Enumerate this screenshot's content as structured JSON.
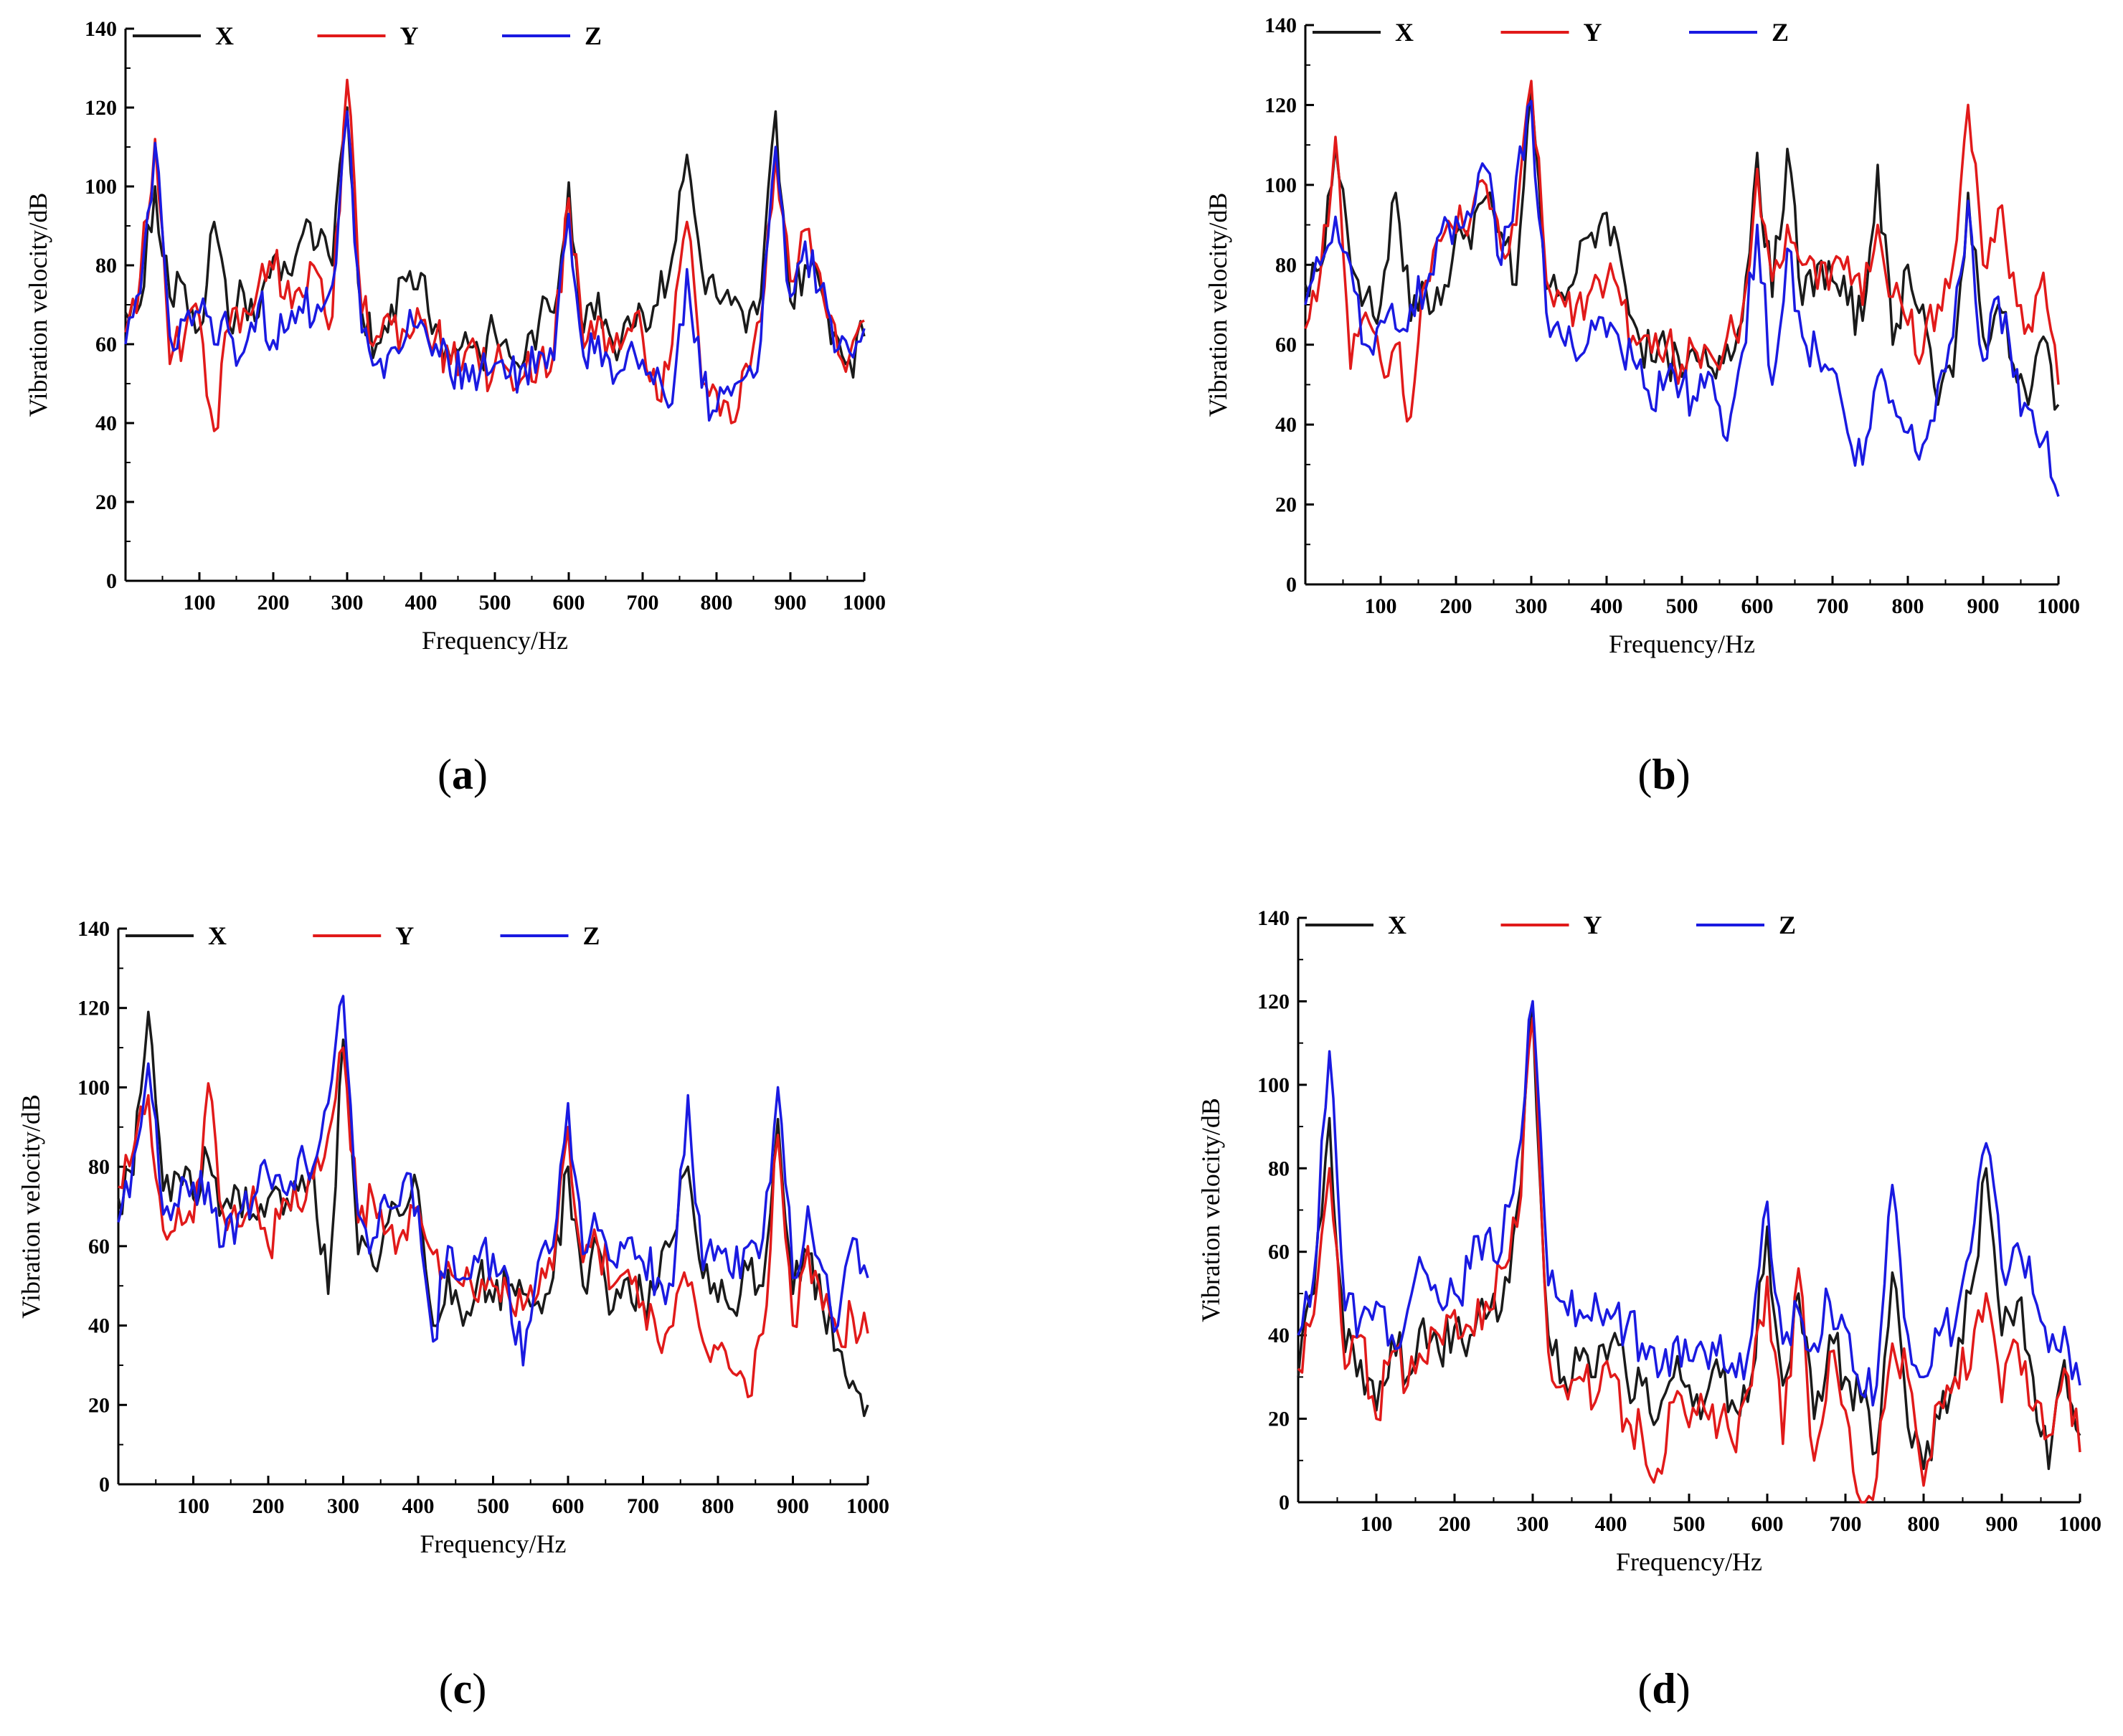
{
  "chart_data": [
    {
      "type": "line",
      "panel": "a",
      "caption": "(a)",
      "caption_open": "(",
      "caption_letter": "a",
      "caption_close": ")",
      "xlabel": "Frequency/Hz",
      "ylabel": "Vibration velocity/dB",
      "xlim": [
        0,
        1000
      ],
      "ylim": [
        0,
        140
      ],
      "xticks": [
        100,
        200,
        300,
        400,
        500,
        600,
        700,
        800,
        900,
        1000
      ],
      "yticks": [
        0,
        20,
        40,
        60,
        80,
        100,
        120,
        140
      ],
      "legend": [
        "X",
        "Y",
        "Z"
      ],
      "legend_position": "top",
      "x": [
        0,
        20,
        40,
        60,
        80,
        100,
        120,
        140,
        160,
        180,
        200,
        220,
        240,
        260,
        280,
        300,
        320,
        340,
        360,
        380,
        400,
        420,
        440,
        460,
        480,
        500,
        520,
        540,
        560,
        580,
        600,
        620,
        640,
        660,
        680,
        700,
        720,
        740,
        760,
        780,
        800,
        820,
        840,
        860,
        880,
        900,
        920,
        940,
        960,
        980,
        1000
      ],
      "series": [
        {
          "name": "X",
          "color": "#1a1a1a",
          "values": [
            68,
            70,
            100,
            72,
            75,
            64,
            91,
            65,
            73,
            67,
            82,
            78,
            88,
            85,
            80,
            120,
            68,
            60,
            70,
            76,
            78,
            65,
            56,
            63,
            57,
            63,
            57,
            56,
            66,
            68,
            101,
            63,
            73,
            60,
            67,
            68,
            70,
            82,
            108,
            79,
            72,
            70,
            63,
            72,
            119,
            71,
            80,
            75,
            63,
            56,
            62
          ]
        },
        {
          "name": "Y",
          "color": "#e11a1a",
          "values": [
            63,
            77,
            112,
            55,
            62,
            67,
            38,
            64,
            69,
            75,
            79,
            76,
            72,
            78,
            67,
            127,
            68,
            62,
            65,
            63,
            66,
            62,
            55,
            58,
            53,
            55,
            53,
            52,
            56,
            58,
            97,
            59,
            67,
            58,
            64,
            62,
            46,
            60,
            91,
            50,
            48,
            40,
            55,
            66,
            108,
            76,
            89,
            78,
            65,
            57,
            66
          ]
        },
        {
          "name": "Z",
          "color": "#1a1ae1",
          "values": [
            60,
            73,
            111,
            62,
            66,
            68,
            60,
            63,
            58,
            70,
            61,
            64,
            68,
            70,
            75,
            119,
            63,
            55,
            59,
            62,
            66,
            60,
            52,
            55,
            53,
            55,
            52,
            55,
            58,
            56,
            93,
            57,
            62,
            50,
            58,
            56,
            54,
            45,
            79,
            49,
            43,
            47,
            52,
            61,
            110,
            72,
            86,
            74,
            58,
            58,
            64
          ]
        }
      ]
    },
    {
      "type": "line",
      "panel": "b",
      "caption": "(b)",
      "caption_open": "(",
      "caption_letter": "b",
      "caption_close": ")",
      "xlabel": "Frequency/Hz",
      "ylabel": "Vibration velocity/dB",
      "xlim": [
        0,
        1000
      ],
      "ylim": [
        0,
        140
      ],
      "xticks": [
        100,
        200,
        300,
        400,
        500,
        600,
        700,
        800,
        900,
        1000
      ],
      "yticks": [
        0,
        20,
        40,
        60,
        80,
        100,
        120,
        140
      ],
      "legend": [
        "X",
        "Y",
        "Z"
      ],
      "legend_position": "top",
      "x": [
        0,
        20,
        40,
        60,
        80,
        100,
        120,
        140,
        160,
        180,
        200,
        220,
        240,
        260,
        280,
        300,
        320,
        340,
        360,
        380,
        400,
        420,
        440,
        460,
        480,
        500,
        520,
        540,
        560,
        580,
        600,
        620,
        640,
        660,
        680,
        700,
        720,
        740,
        760,
        780,
        800,
        820,
        840,
        860,
        880,
        900,
        920,
        940,
        960,
        980,
        1000
      ],
      "series": [
        {
          "name": "X",
          "color": "#1a1a1a",
          "values": [
            75,
            79,
            110,
            80,
            72,
            70,
            98,
            66,
            74,
            70,
            88,
            84,
            97,
            88,
            75,
            124,
            74,
            73,
            78,
            88,
            93,
            80,
            64,
            56,
            58,
            52,
            56,
            54,
            60,
            66,
            108,
            72,
            109,
            70,
            80,
            76,
            70,
            66,
            105,
            60,
            80,
            70,
            45,
            52,
            98,
            62,
            70,
            55,
            45,
            62,
            45
          ]
        },
        {
          "name": "Y",
          "color": "#e11a1a",
          "values": [
            64,
            78,
            112,
            54,
            68,
            56,
            60,
            42,
            76,
            86,
            88,
            92,
            100,
            84,
            90,
            126,
            76,
            72,
            70,
            74,
            76,
            70,
            60,
            58,
            60,
            55,
            58,
            57,
            62,
            68,
            104,
            76,
            90,
            80,
            74,
            80,
            82,
            70,
            90,
            72,
            65,
            58,
            70,
            80,
            120,
            80,
            94,
            78,
            65,
            78,
            50
          ]
        },
        {
          "name": "Z",
          "color": "#1a1ae1",
          "values": [
            70,
            80,
            92,
            80,
            60,
            66,
            64,
            70,
            74,
            88,
            92,
            92,
            104,
            80,
            102,
            121,
            68,
            62,
            56,
            66,
            62,
            58,
            54,
            44,
            52,
            50,
            46,
            52,
            36,
            58,
            90,
            50,
            84,
            62,
            58,
            54,
            38,
            30,
            52,
            46,
            38,
            35,
            50,
            62,
            96,
            56,
            72,
            52,
            44,
            36,
            22
          ]
        }
      ]
    },
    {
      "type": "line",
      "panel": "c",
      "caption": "(c)",
      "caption_open": "(",
      "caption_letter": "c",
      "caption_close": ")",
      "xlabel": "Frequency/Hz",
      "ylabel": "Vibration velocity/dB",
      "xlim": [
        0,
        1000
      ],
      "ylim": [
        0,
        140
      ],
      "xticks": [
        100,
        200,
        300,
        400,
        500,
        600,
        700,
        800,
        900,
        1000
      ],
      "yticks": [
        0,
        20,
        40,
        60,
        80,
        100,
        120,
        140
      ],
      "legend": [
        "X",
        "Y",
        "Z"
      ],
      "legend_position": "top",
      "x": [
        0,
        20,
        40,
        60,
        80,
        100,
        120,
        140,
        160,
        180,
        200,
        220,
        240,
        260,
        280,
        300,
        320,
        340,
        360,
        380,
        400,
        420,
        440,
        460,
        480,
        500,
        520,
        540,
        560,
        580,
        600,
        620,
        640,
        660,
        680,
        700,
        720,
        740,
        760,
        780,
        800,
        820,
        840,
        860,
        880,
        900,
        920,
        940,
        960,
        980,
        1000
      ],
      "series": [
        {
          "name": "X",
          "color": "#1a1a1a",
          "values": [
            72,
            78,
            119,
            74,
            78,
            72,
            82,
            70,
            74,
            68,
            72,
            68,
            74,
            80,
            48,
            112,
            58,
            55,
            66,
            68,
            74,
            40,
            54,
            40,
            52,
            46,
            50,
            48,
            46,
            52,
            80,
            50,
            60,
            44,
            52,
            46,
            50,
            62,
            80,
            52,
            46,
            44,
            54,
            50,
            92,
            48,
            58,
            44,
            34,
            26,
            20
          ]
        },
        {
          "name": "Y",
          "color": "#e11a1a",
          "values": [
            75,
            84,
            98,
            64,
            70,
            66,
            101,
            68,
            65,
            75,
            60,
            72,
            70,
            77,
            88,
            110,
            66,
            72,
            64,
            64,
            70,
            58,
            56,
            50,
            46,
            50,
            48,
            44,
            48,
            54,
            90,
            56,
            60,
            50,
            54,
            46,
            36,
            40,
            50,
            36,
            34,
            28,
            22,
            38,
            88,
            40,
            60,
            44,
            38,
            42,
            38
          ]
        },
        {
          "name": "Z",
          "color": "#1a1ae1",
          "values": [
            66,
            82,
            106,
            68,
            70,
            76,
            76,
            60,
            68,
            72,
            78,
            74,
            82,
            80,
            96,
            123,
            68,
            62,
            70,
            76,
            70,
            36,
            60,
            52,
            56,
            58,
            52,
            30,
            56,
            60,
            96,
            58,
            64,
            56,
            62,
            56,
            52,
            50,
            98,
            54,
            60,
            52,
            60,
            62,
            100,
            52,
            70,
            54,
            40,
            62,
            52
          ]
        }
      ]
    },
    {
      "type": "line",
      "panel": "d",
      "caption": "(d)",
      "caption_open": "(",
      "caption_letter": "d",
      "caption_close": ")",
      "xlabel": "Frequency/Hz",
      "ylabel": "Vibration velocity/dB",
      "xlim": [
        0,
        1000
      ],
      "ylim": [
        0,
        140
      ],
      "xticks": [
        100,
        200,
        300,
        400,
        500,
        600,
        700,
        800,
        900,
        1000
      ],
      "yticks": [
        0,
        20,
        40,
        60,
        80,
        100,
        120,
        140
      ],
      "legend": [
        "X",
        "Y",
        "Z"
      ],
      "legend_position": "top",
      "x": [
        0,
        20,
        40,
        60,
        80,
        100,
        120,
        140,
        160,
        180,
        200,
        220,
        240,
        260,
        280,
        300,
        320,
        340,
        360,
        380,
        400,
        420,
        440,
        460,
        480,
        500,
        520,
        540,
        560,
        580,
        600,
        620,
        640,
        660,
        680,
        700,
        720,
        740,
        760,
        780,
        800,
        820,
        840,
        860,
        880,
        900,
        920,
        940,
        960,
        980,
        1000
      ],
      "series": [
        {
          "name": "X",
          "color": "#1a1a1a",
          "values": [
            30,
            50,
            92,
            36,
            34,
            22,
            40,
            30,
            44,
            36,
            42,
            40,
            44,
            46,
            70,
            118,
            40,
            30,
            34,
            30,
            38,
            30,
            28,
            20,
            30,
            28,
            24,
            30,
            22,
            30,
            66,
            28,
            50,
            20,
            40,
            30,
            24,
            12,
            55,
            18,
            8,
            20,
            30,
            50,
            80,
            40,
            48,
            30,
            8,
            34,
            16
          ]
        },
        {
          "name": "Y",
          "color": "#e11a1a",
          "values": [
            32,
            45,
            80,
            32,
            40,
            20,
            36,
            28,
            34,
            40,
            46,
            42,
            48,
            56,
            66,
            116,
            36,
            28,
            30,
            24,
            30,
            20,
            16,
            8,
            24,
            18,
            22,
            20,
            12,
            28,
            54,
            14,
            56,
            10,
            36,
            22,
            0,
            6,
            38,
            30,
            4,
            24,
            30,
            32,
            50,
            24,
            38,
            22,
            16,
            32,
            12
          ]
        },
        {
          "name": "Z",
          "color": "#1a1ae1",
          "values": [
            40,
            54,
            108,
            46,
            44,
            48,
            40,
            46,
            56,
            48,
            50,
            56,
            64,
            60,
            82,
            120,
            52,
            48,
            46,
            50,
            44,
            42,
            38,
            30,
            38,
            34,
            36,
            40,
            30,
            40,
            72,
            38,
            46,
            38,
            48,
            42,
            26,
            28,
            76,
            40,
            30,
            40,
            42,
            60,
            86,
            56,
            62,
            50,
            36,
            42,
            28
          ]
        }
      ]
    }
  ]
}
